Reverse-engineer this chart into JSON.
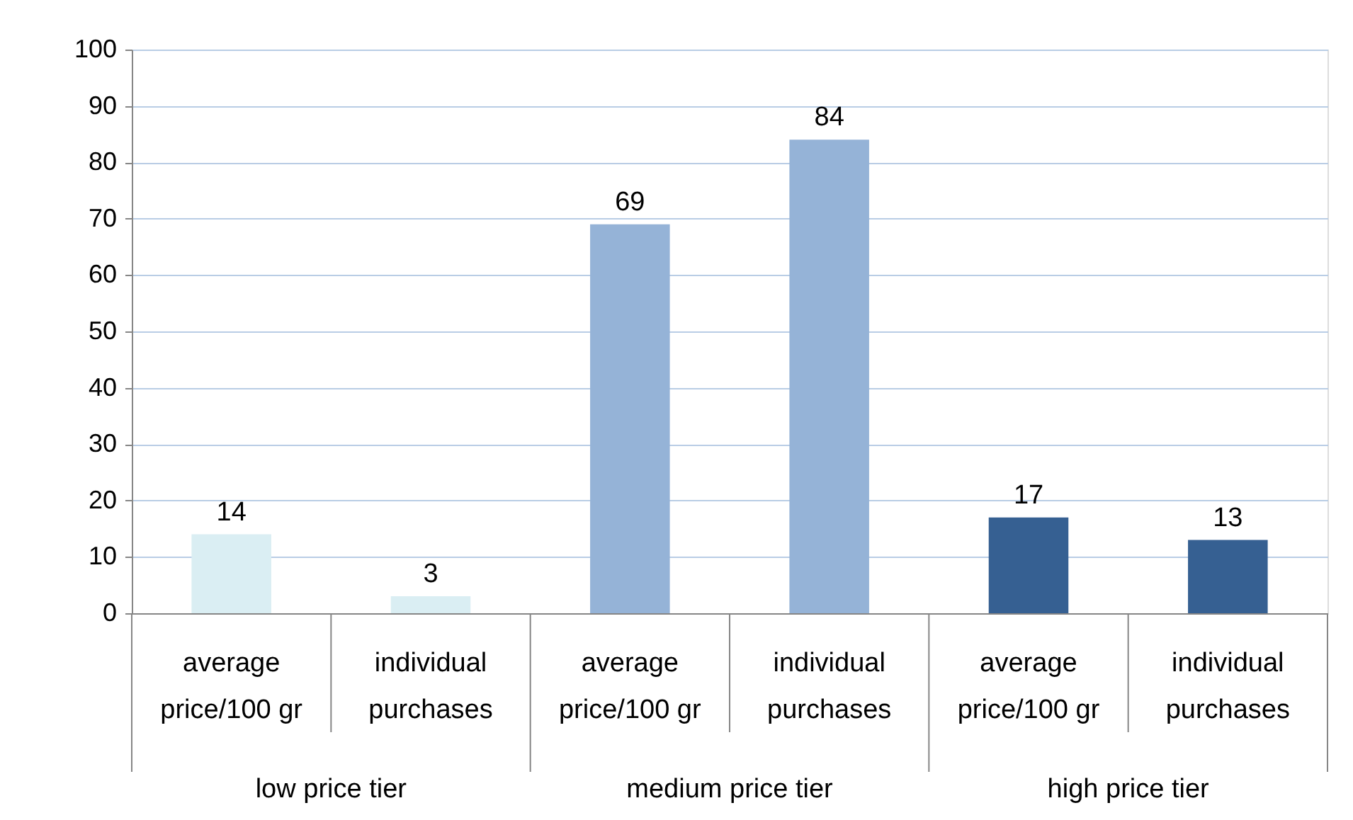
{
  "chart_data": {
    "type": "bar",
    "categories": [
      "average price/100 gr",
      "individual purchases",
      "average price/100 gr",
      "individual purchases",
      "average price/100 gr",
      "individual purchases"
    ],
    "values": [
      14,
      3,
      69,
      84,
      17,
      13
    ],
    "colors": [
      "#daeef3",
      "#daeef3",
      "#95b3d7",
      "#95b3d7",
      "#366092",
      "#366092"
    ],
    "annotations": [
      "low price tier",
      "medium price tier",
      "high price tier"
    ],
    "ylim": [
      0,
      100
    ],
    "yticks": [
      0,
      10,
      20,
      30,
      40,
      50,
      60,
      70,
      80,
      90,
      100
    ],
    "grid": "y",
    "data_labels": true
  }
}
